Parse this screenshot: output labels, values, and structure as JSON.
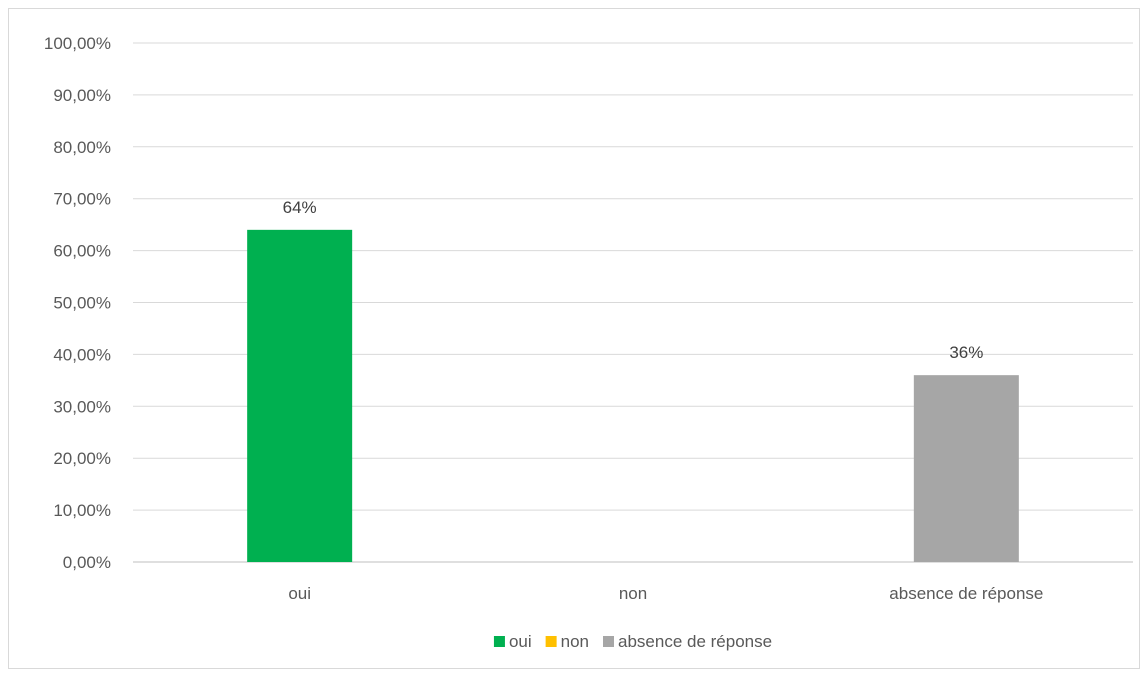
{
  "chart_data": {
    "type": "bar",
    "title": "",
    "xlabel": "",
    "ylabel": "",
    "categories": [
      "oui",
      "non",
      "absence de réponse"
    ],
    "values": [
      64,
      0,
      36
    ],
    "data_labels": [
      "64%",
      "",
      "36%"
    ],
    "colors": [
      "#00b050",
      "#ffc000",
      "#a6a6a6"
    ],
    "ylim": [
      0,
      100
    ],
    "yticks": [
      0,
      10,
      20,
      30,
      40,
      50,
      60,
      70,
      80,
      90,
      100
    ],
    "ytick_labels": [
      "0,00%",
      "10,00%",
      "20,00%",
      "30,00%",
      "40,00%",
      "50,00%",
      "60,00%",
      "70,00%",
      "80,00%",
      "90,00%",
      "100,00%"
    ],
    "grid": true,
    "legend": {
      "position": "bottom",
      "entries": [
        {
          "label": "oui",
          "color": "#00b050"
        },
        {
          "label": "non",
          "color": "#ffc000"
        },
        {
          "label": "absence de réponse",
          "color": "#a6a6a6"
        }
      ]
    }
  }
}
